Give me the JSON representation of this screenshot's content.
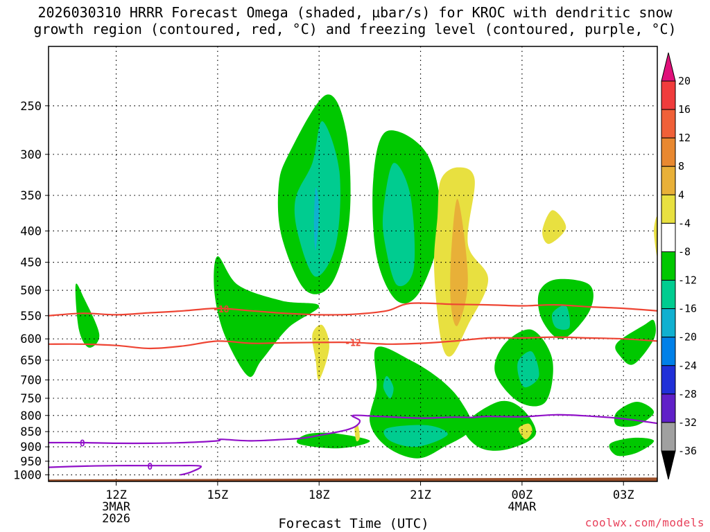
{
  "title_line1": "2026030310 HRRR Forecast Omega (shaded, µbar/s) for KROC with dendritic snow",
  "title_line2": "growth region (contoured, red, °C) and freezing level (contoured, purple, °C)",
  "xlabel": "Forecast Time (UTC)",
  "credit": "coolwx.com/models",
  "colors": {
    "dendritic": "#ee4433",
    "freezing": "#9010c8",
    "ground": "#9a4e28",
    "grid": "#000000"
  },
  "chart_data": {
    "type": "contour",
    "title": "2026030310 HRRR Forecast Omega (shaded, µbar/s) for KROC with dendritic snow growth region (contoured, red, °C) and freezing level (contoured, purple, °C)",
    "xlabel": "Forecast Time (UTC)",
    "ylabel": "",
    "x_unit": "hours since 2026-03-03 10Z",
    "xlim": [
      0,
      18
    ],
    "y_scale": "log",
    "ylim": [
      1025,
      200
    ],
    "y_ticks": [
      250,
      300,
      350,
      400,
      450,
      500,
      550,
      600,
      650,
      700,
      750,
      800,
      850,
      900,
      950,
      1000
    ],
    "x_ticks": [
      {
        "x": 2,
        "label": "12Z",
        "sub": [
          "3MAR",
          "2026"
        ]
      },
      {
        "x": 5,
        "label": "15Z",
        "sub": []
      },
      {
        "x": 8,
        "label": "18Z",
        "sub": []
      },
      {
        "x": 11,
        "label": "21Z",
        "sub": []
      },
      {
        "x": 14,
        "label": "00Z",
        "sub": [
          "4MAR"
        ]
      },
      {
        "x": 17,
        "label": "03Z",
        "sub": []
      }
    ],
    "colorbar": {
      "labels": [
        "20",
        "16",
        "12",
        "8",
        "4",
        "-4",
        "-8",
        "-12",
        "-16",
        "-20",
        "-24",
        "-28",
        "-32",
        "-36"
      ],
      "colors": [
        "#f03c3c",
        "#f06038",
        "#e88830",
        "#e8b038",
        "#e8e040",
        "#ffffff",
        "#00c800",
        "#00cc90",
        "#10b0d0",
        "#0080e8",
        "#2030d8",
        "#6020c8",
        "#9010c8",
        "#a0a0a0"
      ],
      "top_arrow": "#e0107a",
      "bottom_arrow": "#000000"
    },
    "omega_regions": [
      {
        "level": -4,
        "color": "#00c800",
        "points": [
          [
            0.8,
            490
          ],
          [
            1.05,
            515
          ],
          [
            1.5,
            590
          ],
          [
            1.2,
            620
          ],
          [
            0.9,
            580
          ]
        ]
      },
      {
        "level": -4,
        "color": "#00c800",
        "points": [
          [
            5.0,
            440
          ],
          [
            5.6,
            490
          ],
          [
            6.9,
            520
          ],
          [
            8.0,
            530
          ],
          [
            7.1,
            575
          ],
          [
            6.3,
            650
          ],
          [
            5.9,
            690
          ],
          [
            5.2,
            590
          ],
          [
            4.9,
            500
          ]
        ]
      },
      {
        "level": -4,
        "color": "#00c800",
        "points": [
          [
            6.8,
            340
          ],
          [
            7.1,
            300
          ],
          [
            8.2,
            240
          ],
          [
            8.8,
            275
          ],
          [
            8.9,
            380
          ],
          [
            8.4,
            485
          ],
          [
            7.6,
            500
          ],
          [
            6.9,
            410
          ]
        ]
      },
      {
        "level": -8,
        "color": "#00cc90",
        "points": [
          [
            7.3,
            355
          ],
          [
            7.8,
            310
          ],
          [
            8.1,
            265
          ],
          [
            8.6,
            320
          ],
          [
            8.5,
            420
          ],
          [
            7.9,
            475
          ],
          [
            7.4,
            410
          ]
        ]
      },
      {
        "level": -12,
        "color": "#10b0d0",
        "points": [
          [
            7.9,
            340
          ],
          [
            8.0,
            370
          ],
          [
            7.9,
            430
          ],
          [
            7.85,
            390
          ]
        ]
      },
      {
        "level": -4,
        "color": "#00c800",
        "points": [
          [
            9.6,
            330
          ],
          [
            10.0,
            275
          ],
          [
            11.2,
            300
          ],
          [
            11.6,
            390
          ],
          [
            11.0,
            500
          ],
          [
            10.3,
            520
          ],
          [
            9.7,
            440
          ]
        ]
      },
      {
        "level": -8,
        "color": "#00cc90",
        "points": [
          [
            9.9,
            370
          ],
          [
            10.2,
            310
          ],
          [
            10.7,
            350
          ],
          [
            10.8,
            460
          ],
          [
            10.3,
            490
          ],
          [
            9.95,
            420
          ]
        ]
      },
      {
        "level": -4,
        "color": "#00c800",
        "points": [
          [
            7.6,
            860
          ],
          [
            8.4,
            855
          ],
          [
            9.5,
            880
          ],
          [
            8.6,
            905
          ],
          [
            7.4,
            890
          ]
        ]
      },
      {
        "level": -4,
        "color": "#00c800",
        "points": [
          [
            9.7,
            620
          ],
          [
            10.7,
            650
          ],
          [
            11.6,
            700
          ],
          [
            12.2,
            760
          ],
          [
            12.5,
            840
          ],
          [
            11.7,
            900
          ],
          [
            10.9,
            940
          ],
          [
            10.0,
            900
          ],
          [
            9.5,
            820
          ],
          [
            9.7,
            720
          ]
        ]
      },
      {
        "level": -8,
        "color": "#00cc90",
        "points": [
          [
            10.0,
            840
          ],
          [
            11.2,
            830
          ],
          [
            11.8,
            860
          ],
          [
            10.9,
            900
          ],
          [
            10.1,
            880
          ]
        ]
      },
      {
        "level": -8,
        "color": "#00cc90",
        "points": [
          [
            10.0,
            690
          ],
          [
            10.2,
            720
          ],
          [
            10.1,
            750
          ],
          [
            9.9,
            720
          ]
        ]
      },
      {
        "level": -4,
        "color": "#00c800",
        "points": [
          [
            12.3,
            830
          ],
          [
            13.3,
            760
          ],
          [
            14.0,
            780
          ],
          [
            14.4,
            860
          ],
          [
            13.5,
            910
          ],
          [
            12.7,
            900
          ]
        ]
      },
      {
        "level": -4,
        "color": "#00c800",
        "points": [
          [
            13.5,
            610
          ],
          [
            14.3,
            580
          ],
          [
            14.9,
            650
          ],
          [
            14.7,
            760
          ],
          [
            13.9,
            760
          ],
          [
            13.2,
            680
          ]
        ]
      },
      {
        "level": -8,
        "color": "#00cc90",
        "points": [
          [
            13.9,
            650
          ],
          [
            14.3,
            630
          ],
          [
            14.5,
            690
          ],
          [
            14.1,
            720
          ],
          [
            13.9,
            690
          ]
        ]
      },
      {
        "level": -4,
        "color": "#00c800",
        "points": [
          [
            14.5,
            505
          ],
          [
            15.0,
            480
          ],
          [
            16.0,
            490
          ],
          [
            16.0,
            540
          ],
          [
            15.2,
            600
          ],
          [
            14.6,
            560
          ]
        ]
      },
      {
        "level": -8,
        "color": "#00cc90",
        "points": [
          [
            14.9,
            545
          ],
          [
            15.3,
            530
          ],
          [
            15.4,
            575
          ],
          [
            15.0,
            575
          ]
        ]
      },
      {
        "level": -4,
        "color": "#00c800",
        "points": [
          [
            16.8,
            610
          ],
          [
            17.6,
            570
          ],
          [
            17.9,
            560
          ],
          [
            17.9,
            600
          ],
          [
            17.3,
            660
          ],
          [
            16.9,
            640
          ]
        ]
      },
      {
        "level": -4,
        "color": "#00c800",
        "points": [
          [
            16.8,
            790
          ],
          [
            17.4,
            760
          ],
          [
            17.9,
            790
          ],
          [
            17.4,
            830
          ],
          [
            16.8,
            830
          ]
        ]
      },
      {
        "level": -4,
        "color": "#00c800",
        "points": [
          [
            16.6,
            890
          ],
          [
            17.3,
            870
          ],
          [
            17.9,
            880
          ],
          [
            17.4,
            920
          ],
          [
            16.8,
            930
          ]
        ]
      },
      {
        "level": 4,
        "color": "#e8e040",
        "points": [
          [
            11.5,
            380
          ],
          [
            11.6,
            330
          ],
          [
            12.1,
            315
          ],
          [
            12.6,
            330
          ],
          [
            12.4,
            420
          ],
          [
            13.0,
            480
          ],
          [
            12.4,
            570
          ],
          [
            11.9,
            640
          ],
          [
            11.6,
            600
          ],
          [
            11.4,
            460
          ]
        ]
      },
      {
        "level": 8,
        "color": "#e8b038",
        "points": [
          [
            11.9,
            440
          ],
          [
            12.1,
            355
          ],
          [
            12.4,
            480
          ],
          [
            12.1,
            570
          ],
          [
            11.9,
            530
          ]
        ]
      },
      {
        "level": 4,
        "color": "#e8e040",
        "points": [
          [
            7.8,
            590
          ],
          [
            8.1,
            570
          ],
          [
            8.3,
            620
          ],
          [
            8.0,
            700
          ],
          [
            7.9,
            650
          ]
        ]
      },
      {
        "level": 4,
        "color": "#e8e040",
        "points": [
          [
            14.6,
            400
          ],
          [
            14.9,
            370
          ],
          [
            15.3,
            395
          ],
          [
            14.8,
            420
          ]
        ]
      },
      {
        "level": 4,
        "color": "#e8e040",
        "points": [
          [
            17.9,
            400
          ],
          [
            18.0,
            380
          ],
          [
            18.0,
            440
          ]
        ]
      },
      {
        "level": 4,
        "color": "#e8e040",
        "points": [
          [
            9.05,
            840
          ],
          [
            9.15,
            830
          ],
          [
            9.2,
            870
          ],
          [
            9.1,
            880
          ]
        ]
      },
      {
        "level": 4,
        "color": "#e8e040",
        "points": [
          [
            13.9,
            840
          ],
          [
            14.2,
            825
          ],
          [
            14.3,
            850
          ],
          [
            14.1,
            875
          ]
        ]
      }
    ],
    "dendritic_contours": [
      {
        "level": -18,
        "label": "-18",
        "label_at": [
          5.1,
          536
        ],
        "points": [
          [
            0,
            550
          ],
          [
            1,
            545
          ],
          [
            2,
            548
          ],
          [
            3,
            544
          ],
          [
            4,
            540
          ],
          [
            5,
            535
          ],
          [
            6,
            540
          ],
          [
            7,
            545
          ],
          [
            8,
            548
          ],
          [
            9,
            547
          ],
          [
            10,
            540
          ],
          [
            10.7,
            525
          ],
          [
            12,
            527
          ],
          [
            13,
            528
          ],
          [
            14,
            530
          ],
          [
            15,
            528
          ],
          [
            16,
            532
          ],
          [
            17,
            535
          ],
          [
            18,
            540
          ]
        ]
      },
      {
        "level": -12,
        "label": "-12",
        "label_at": [
          9.0,
          608
        ],
        "points": [
          [
            0,
            612
          ],
          [
            1,
            612
          ],
          [
            2,
            615
          ],
          [
            3,
            622
          ],
          [
            4,
            616
          ],
          [
            5,
            605
          ],
          [
            6,
            610
          ],
          [
            7,
            609
          ],
          [
            8,
            608
          ],
          [
            9,
            608
          ],
          [
            10,
            612
          ],
          [
            11,
            610
          ],
          [
            12,
            605
          ],
          [
            13,
            598
          ],
          [
            14,
            598
          ],
          [
            15,
            596
          ],
          [
            16,
            598
          ],
          [
            17,
            600
          ],
          [
            18,
            605
          ]
        ]
      }
    ],
    "freezing_contours": [
      {
        "level": 0,
        "label": "0",
        "label_at": [
          1.0,
          887
        ],
        "points": [
          [
            0,
            886
          ],
          [
            1,
            886
          ],
          [
            2,
            888
          ],
          [
            3,
            888
          ],
          [
            4,
            886
          ],
          [
            5,
            880
          ],
          [
            5.1,
            875
          ],
          [
            6,
            880
          ],
          [
            7,
            875
          ],
          [
            7.6,
            870
          ],
          [
            8.2,
            858
          ],
          [
            8.8,
            845
          ],
          [
            9.1,
            832
          ],
          [
            9.2,
            815
          ],
          [
            9.0,
            800
          ],
          [
            9.8,
            803
          ],
          [
            11,
            808
          ],
          [
            12,
            805
          ],
          [
            12.5,
            806
          ],
          [
            13,
            803
          ],
          [
            14,
            804
          ],
          [
            15,
            798
          ],
          [
            16,
            802
          ],
          [
            17,
            810
          ],
          [
            18,
            824
          ]
        ]
      },
      {
        "level": 0,
        "label": "0",
        "label_at": [
          3.0,
          968
        ],
        "points": [
          [
            0,
            972
          ],
          [
            1,
            968
          ],
          [
            2,
            966
          ],
          [
            3,
            966
          ],
          [
            3.8,
            966
          ],
          [
            4.5,
            968
          ],
          [
            4.2,
            990
          ],
          [
            3.9,
            1000
          ]
        ]
      }
    ]
  }
}
